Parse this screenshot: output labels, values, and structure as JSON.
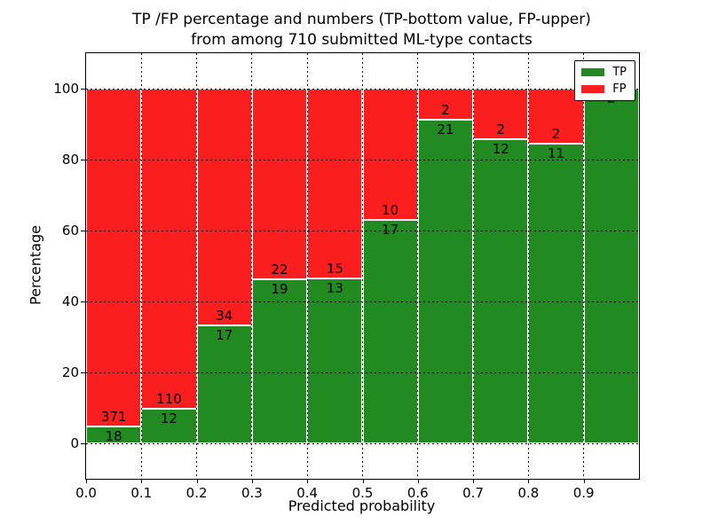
{
  "figure": {
    "title_line1": "TP /FP percentage and numbers (TP-bottom value, FP-upper)",
    "title_line2": "from among 710 submitted ML-type contacts",
    "xlabel": "Predicted probability",
    "ylabel": "Percentage"
  },
  "legend": {
    "tp_label": "TP",
    "fp_label": "FP"
  },
  "chart_data": {
    "type": "bar",
    "stacked": true,
    "title": "TP /FP percentage and numbers (TP-bottom value, FP-upper) from among 710 submitted ML-type contacts",
    "xlabel": "Predicted probability",
    "ylabel": "Percentage",
    "total_contacts": 710,
    "bins": [
      "0.0-0.1",
      "0.1-0.2",
      "0.2-0.3",
      "0.3-0.4",
      "0.4-0.5",
      "0.5-0.6",
      "0.6-0.7",
      "0.7-0.8",
      "0.8-0.9",
      "0.9-1.0"
    ],
    "series": [
      {
        "name": "TP",
        "color": "#218a21",
        "counts": [
          18,
          12,
          17,
          19,
          13,
          17,
          21,
          12,
          11,
          2
        ],
        "percent_of_bin": [
          4.6,
          9.8,
          33.3,
          46.3,
          46.4,
          63.0,
          91.3,
          85.7,
          84.6,
          100.0
        ]
      },
      {
        "name": "FP",
        "color": "#fa1e1e",
        "counts": [
          371,
          110,
          34,
          22,
          15,
          10,
          2,
          2,
          2,
          0
        ],
        "percent_of_bin": [
          95.4,
          90.2,
          66.7,
          53.7,
          53.6,
          37.0,
          8.7,
          14.3,
          15.4,
          0.0
        ]
      }
    ],
    "xlim": [
      0.0,
      1.0
    ],
    "ylim": [
      -10,
      110
    ],
    "xticks": [
      "0.0",
      "0.1",
      "0.2",
      "0.3",
      "0.4",
      "0.5",
      "0.6",
      "0.7",
      "0.8",
      "0.9"
    ],
    "yticks": [
      0,
      20,
      40,
      60,
      80,
      100
    ],
    "grid": "dotted",
    "legend_position": "upper right"
  }
}
